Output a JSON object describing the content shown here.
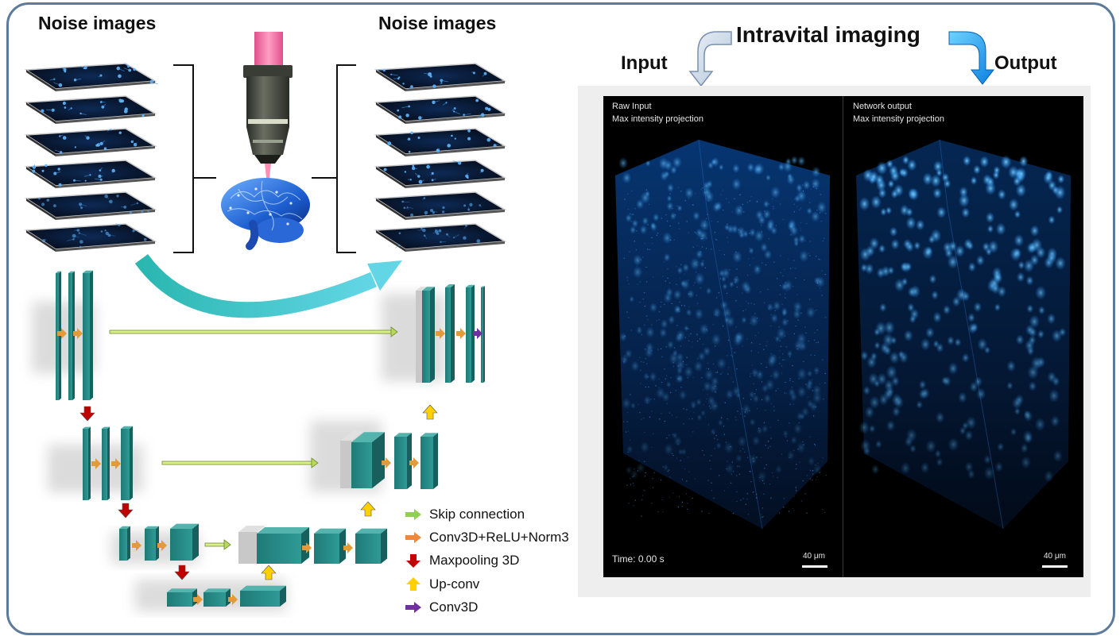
{
  "headings": {
    "noise_left": "Noise images",
    "noise_right": "Noise images",
    "intravital": "Intravital imaging",
    "input": "Input",
    "output": "Output"
  },
  "legend": [
    {
      "label": "Skip connection",
      "color": "#8fd14f"
    },
    {
      "label": "Conv3D+ReLU+Norm3",
      "color": "#f0883a"
    },
    {
      "label": "Maxpooling 3D",
      "color": "#c00000"
    },
    {
      "label": "Up-conv",
      "color": "#ffd000"
    },
    {
      "label": "Conv3D",
      "color": "#7030a0"
    }
  ],
  "viewer": {
    "left_title": "Raw Input",
    "left_subtitle": "Max intensity projection",
    "right_title": "Network output",
    "right_subtitle": "Max intensity projection",
    "time_label": "Time: 0.00 s",
    "scale_left": "40 μm",
    "scale_right": "40 μm"
  },
  "colors": {
    "frame_border": "#5b7a9c",
    "block_teal": "#2a8a86",
    "neuron_blue": "#1e90ff",
    "curve_cyan": "#40c8d0"
  }
}
